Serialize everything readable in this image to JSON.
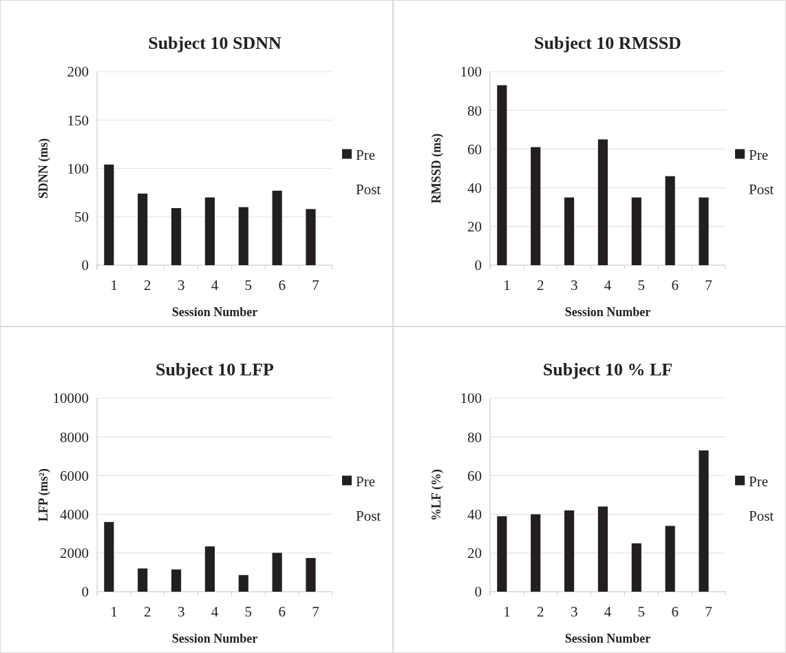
{
  "chart_data": [
    {
      "type": "bar",
      "title": "Subject 10 SDNN",
      "xlabel": "Session Number",
      "ylabel": "SDNN (ms)",
      "categories": [
        "1",
        "2",
        "3",
        "4",
        "5",
        "6",
        "7"
      ],
      "series": [
        {
          "name": "Pre",
          "color": "#231f20",
          "values": [
            104,
            74,
            59,
            70,
            60,
            77,
            58
          ]
        },
        {
          "name": "Post",
          "values": [
            null,
            null,
            null,
            null,
            null,
            null,
            null
          ]
        }
      ],
      "ylim": [
        0,
        200
      ],
      "yticks": [
        0,
        50,
        100,
        150,
        200
      ],
      "grid": "y",
      "legend": "right"
    },
    {
      "type": "bar",
      "title": "Subject 10 RMSSD",
      "xlabel": "Session Number",
      "ylabel": "RMSSD (ms)",
      "categories": [
        "1",
        "2",
        "3",
        "4",
        "5",
        "6",
        "7"
      ],
      "series": [
        {
          "name": "Pre",
          "color": "#231f20",
          "values": [
            93,
            61,
            35,
            65,
            35,
            46,
            35
          ]
        },
        {
          "name": "Post",
          "values": [
            null,
            null,
            null,
            null,
            null,
            null,
            null
          ]
        }
      ],
      "ylim": [
        0,
        100
      ],
      "yticks": [
        0,
        20,
        40,
        60,
        80,
        100
      ],
      "grid": "y",
      "legend": "right"
    },
    {
      "type": "bar",
      "title": "Subject 10 LFP",
      "xlabel": "Session Number",
      "ylabel": "LFP (ms²)",
      "categories": [
        "1",
        "2",
        "3",
        "4",
        "5",
        "6",
        "7"
      ],
      "series": [
        {
          "name": "Pre",
          "color": "#231f20",
          "values": [
            3600,
            1200,
            1150,
            2340,
            860,
            2010,
            1740
          ]
        },
        {
          "name": "Post",
          "values": [
            null,
            null,
            null,
            null,
            null,
            null,
            null
          ]
        }
      ],
      "ylim": [
        0,
        10000
      ],
      "yticks": [
        0,
        2000,
        4000,
        6000,
        8000,
        10000
      ],
      "grid": "y",
      "legend": "right"
    },
    {
      "type": "bar",
      "title": "Subject 10 % LF",
      "xlabel": "Session Number",
      "ylabel": "%LF (%)",
      "categories": [
        "1",
        "2",
        "3",
        "4",
        "5",
        "6",
        "7"
      ],
      "series": [
        {
          "name": "Pre",
          "color": "#231f20",
          "values": [
            39,
            40,
            42,
            44,
            25,
            34,
            73
          ]
        },
        {
          "name": "Post",
          "values": [
            null,
            null,
            null,
            null,
            null,
            null,
            null
          ]
        }
      ],
      "ylim": [
        0,
        100
      ],
      "yticks": [
        0,
        20,
        40,
        60,
        80,
        100
      ],
      "grid": "y",
      "legend": "right"
    }
  ]
}
